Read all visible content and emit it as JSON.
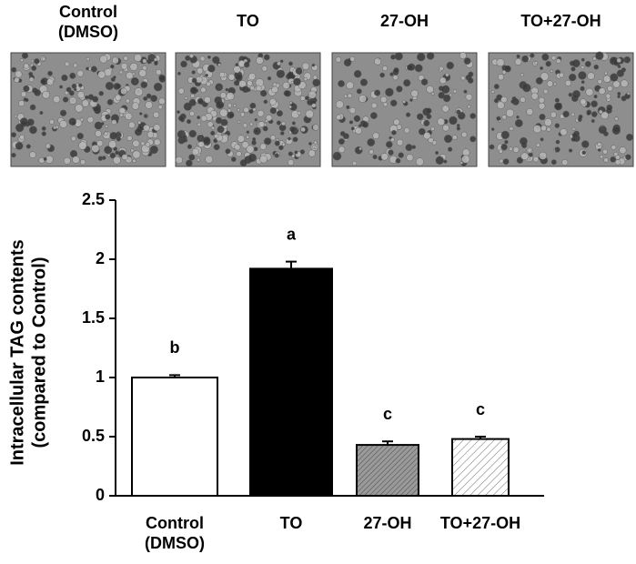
{
  "images": {
    "labels": [
      "Control (DMSO)",
      "TO",
      "27-OH",
      "TO+27-OH"
    ]
  },
  "chart_data": {
    "type": "bar",
    "y_label": [
      "Intracellular TAG contents",
      "(compared to Control)"
    ],
    "categories": [
      "Control (DMSO)",
      "TO",
      "27-OH",
      "TO+27-OH"
    ],
    "values": [
      1.0,
      1.92,
      0.43,
      0.48
    ],
    "errors": [
      0.02,
      0.06,
      0.03,
      0.02
    ],
    "significance_letters": [
      "b",
      "a",
      "c",
      "c"
    ],
    "colors": [
      "#ffffff",
      "#000000",
      "#9a9a9a",
      "#ffffff"
    ],
    "hatch": [
      false,
      false,
      true,
      true
    ],
    "ylim": [
      0,
      2.5
    ],
    "yticks": [
      0,
      0.5,
      1,
      1.5,
      2,
      2.5
    ],
    "grid": false
  }
}
